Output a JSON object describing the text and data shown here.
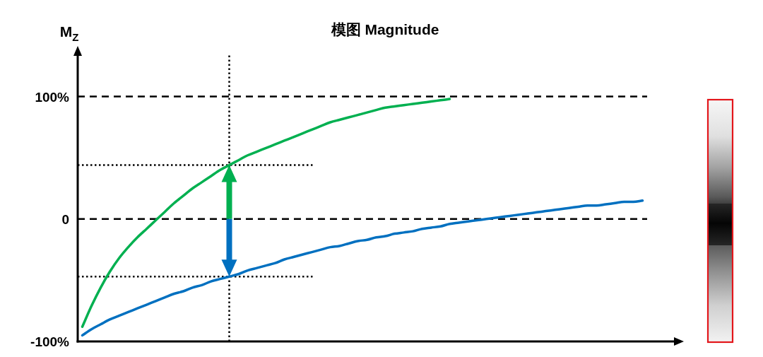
{
  "chart_data": {
    "type": "line",
    "title": "模图 Magnitude",
    "ylabel": "M$_{Z}$",
    "categories": [
      null,
      null,
      null,
      null,
      null,
      null,
      null,
      null,
      null,
      null,
      null,
      null,
      null,
      null,
      null,
      null,
      null,
      null,
      null,
      null,
      null,
      null,
      null,
      null,
      null,
      null,
      null,
      null,
      null,
      null,
      null,
      null,
      null,
      null,
      null,
      null,
      null,
      null,
      null,
      null,
      null,
      null,
      null,
      null,
      null,
      null,
      null,
      null,
      null,
      null,
      null,
      null,
      null,
      null,
      null,
      null,
      null,
      null,
      null,
      null,
      null,
      null
    ],
    "series": [
      {
        "color": "#00b050",
        "values": [
          -88,
          -71,
          -56,
          -43,
          -32,
          -23,
          -15,
          -8,
          -1,
          6,
          13,
          19,
          25,
          30,
          35,
          40,
          44,
          48,
          52,
          55,
          58,
          61,
          64,
          67,
          70,
          73,
          76,
          79,
          81,
          83,
          85,
          87,
          89,
          91,
          92,
          93,
          94,
          95,
          96,
          97,
          98,
          null,
          null,
          null,
          null,
          null,
          null,
          null,
          null,
          null,
          null,
          null,
          null,
          null,
          null,
          null,
          null,
          null,
          null,
          null,
          null,
          null
        ]
      },
      {
        "color": "#0070c0",
        "values": [
          -95,
          -90,
          -86,
          -82,
          -79,
          -76,
          -73,
          -70,
          -67,
          -64,
          -61,
          -59,
          -56,
          -54,
          -51,
          -49,
          -47,
          -45,
          -42,
          -40,
          -38,
          -36,
          -33,
          -31,
          -29,
          -27,
          -25,
          -23,
          -22,
          -20,
          -18,
          -17,
          -15,
          -14,
          -12,
          -11,
          -10,
          -8,
          -7,
          -6,
          -4,
          -3,
          -2,
          -1,
          0,
          1,
          2,
          3,
          4,
          5,
          6,
          7,
          8,
          9,
          10,
          11,
          11,
          12,
          13,
          14,
          14,
          15
        ]
      }
    ],
    "ylim": [
      -100,
      135
    ],
    "yticks": [
      {
        "value": 100,
        "label": "100%"
      },
      0,
      {
        "value": -100,
        "label": "-100%"
      }
    ],
    "tick_labels": "y",
    "ref_lines": [
      {
        "axis": "y",
        "value": 100,
        "line_style": "dashed",
        "color": "#000000"
      },
      {
        "axis": "y",
        "value": 0,
        "line_style": "dashed",
        "color": "#000000"
      },
      {
        "axis": "y",
        "value": 44,
        "line_style": "dotted",
        "color": "#000000"
      },
      {
        "axis": "y",
        "value": -47,
        "line_style": "dotted",
        "color": "#000000"
      }
    ]
  }
}
